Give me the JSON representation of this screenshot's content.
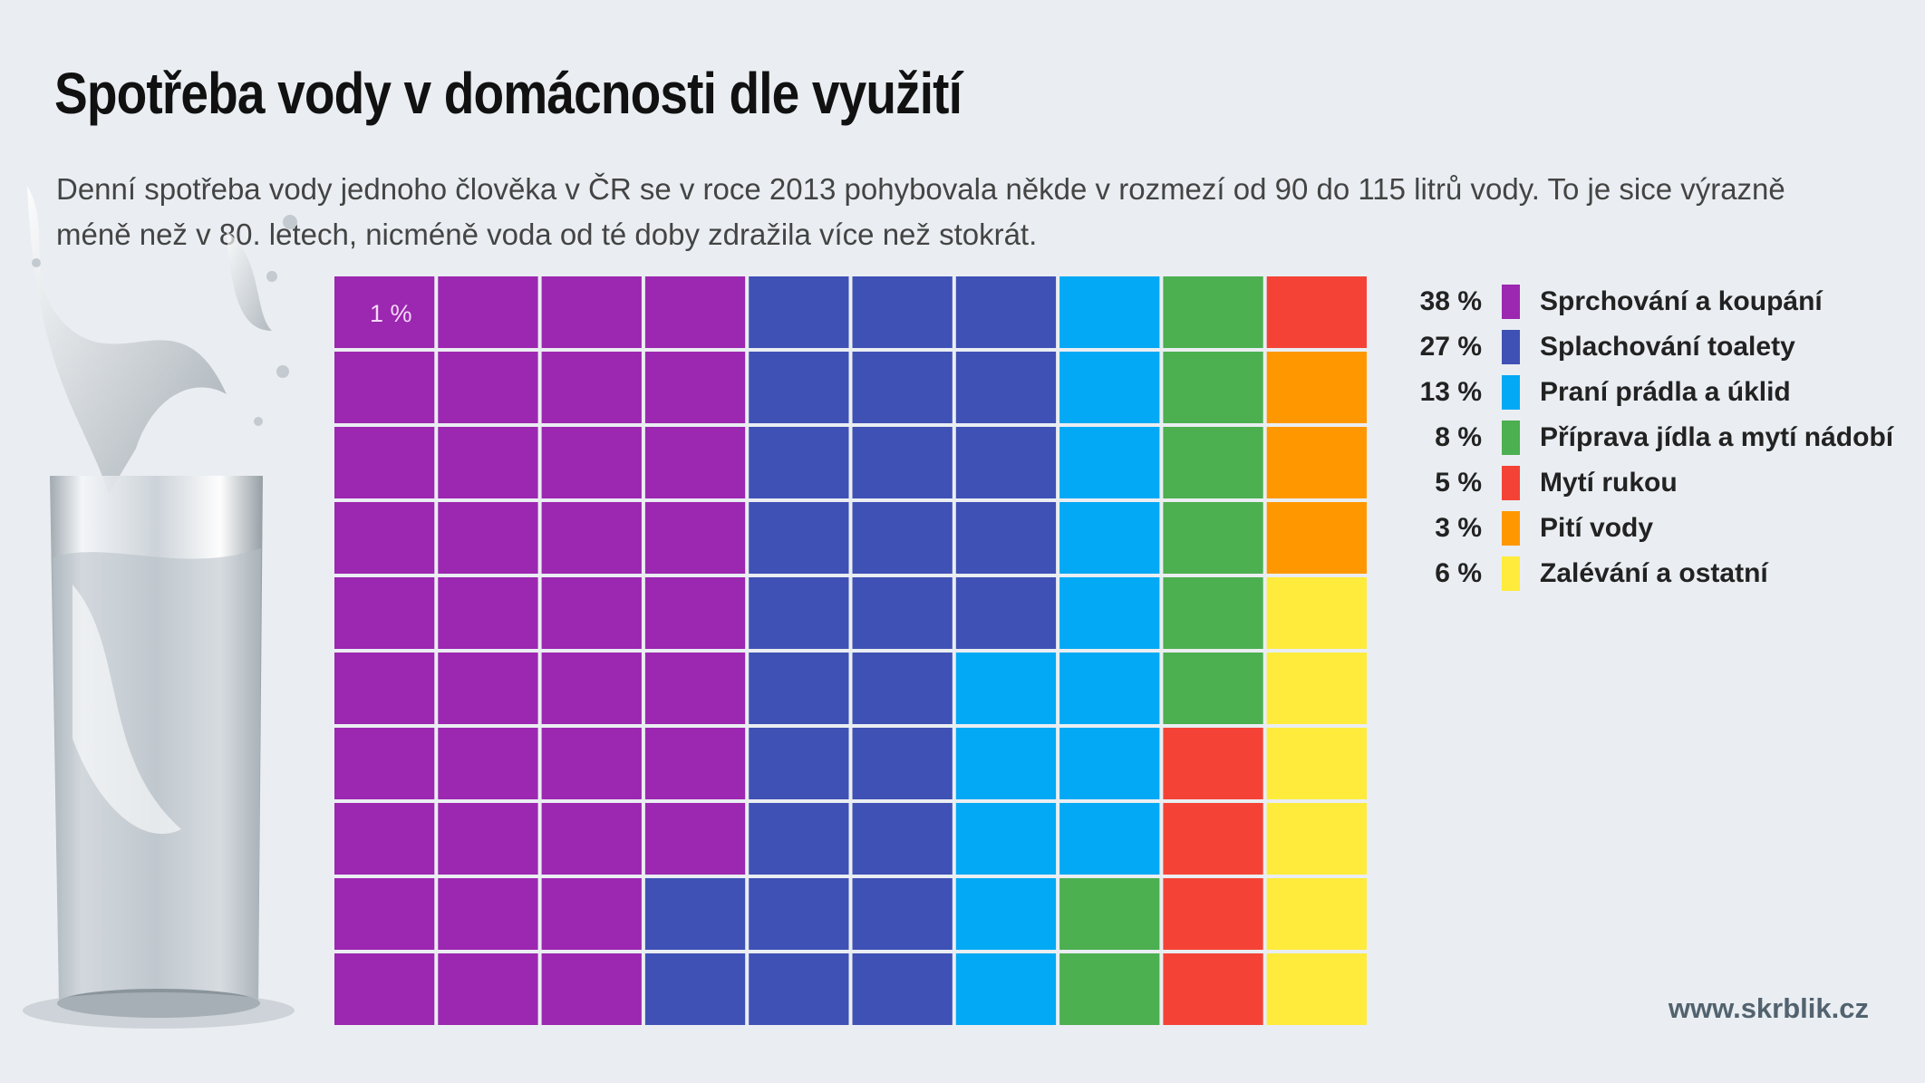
{
  "title": "Spotřeba vody v domácnosti dle využití",
  "subtitle": "Denní spotřeba vody jednoho člověka v ČR se v roce 2013 pohybovala někde v rozmezí od 90 do 115 litrů vody. To je sice výrazně méně než v 80. letech, nicméně voda od té doby zdražila více než stokrát.",
  "unit_label": "1 %",
  "source": "www.skrblik.cz",
  "chart_data": {
    "type": "waffle",
    "grid": {
      "rows": 10,
      "cols": 10
    },
    "unit": "1 %",
    "series": [
      {
        "name": "Sprchování a koupání",
        "value": 38,
        "label": "38 %",
        "color": "#9c27b0"
      },
      {
        "name": "Splachování toalety",
        "value": 27,
        "label": "27 %",
        "color": "#3f51b5"
      },
      {
        "name": "Praní prádla a úklid",
        "value": 13,
        "label": "13 %",
        "color": "#03a9f4"
      },
      {
        "name": "Příprava jídla a mytí nádobí",
        "value": 8,
        "label": "8 %",
        "color": "#4caf50"
      },
      {
        "name": "Mytí rukou",
        "value": 5,
        "label": "5 %",
        "color": "#f44336"
      },
      {
        "name": "Pití vody",
        "value": 3,
        "label": "3 %",
        "color": "#ff9800"
      },
      {
        "name": "Zalévání a ostatní",
        "value": 6,
        "label": "6 %",
        "color": "#ffeb3b"
      }
    ]
  }
}
